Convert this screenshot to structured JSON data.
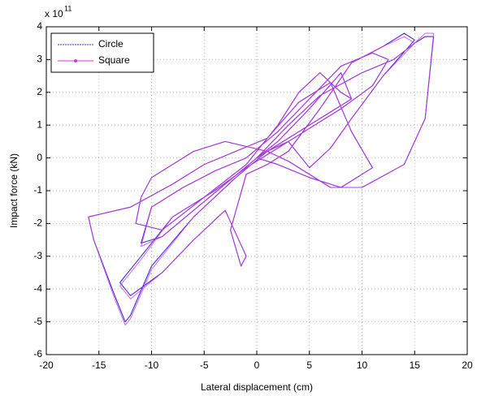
{
  "chart_data": {
    "type": "line",
    "xlabel": "Lateral displacement (cm)",
    "ylabel": "Impact force (kN)",
    "y_multiplier": {
      "base": "x 10",
      "exponent": "11"
    },
    "xlim": [
      -20,
      20
    ],
    "xticks": [
      -20,
      -15,
      -10,
      -5,
      0,
      5,
      10,
      15,
      20
    ],
    "ylim": [
      -6,
      4
    ],
    "yticks": [
      -6,
      -5,
      -4,
      -3,
      -2,
      -1,
      0,
      1,
      2,
      3,
      4
    ],
    "grid": true,
    "legend": "upper left",
    "series": [
      {
        "name": "Circle",
        "color": "#3a2ee0",
        "x": [
          0,
          2,
          5,
          8,
          9,
          6,
          3,
          0,
          -3,
          -6,
          -9,
          -11,
          -10,
          -7,
          -4,
          -1,
          2,
          5,
          8,
          11,
          12.5,
          11,
          8,
          5,
          2,
          -1,
          -4,
          -8,
          -11,
          -13,
          -12,
          -9,
          -6,
          -3,
          -1,
          -1.5,
          -2.5,
          -1,
          1,
          3,
          6,
          9,
          12,
          14,
          15,
          12,
          9,
          7,
          5,
          3,
          1,
          -2,
          -6,
          -10,
          -12,
          -12.5,
          -13.5,
          -15.5,
          -16,
          -12,
          -8,
          -5,
          -2,
          1,
          4,
          7,
          9,
          11,
          8,
          5,
          2,
          0,
          3,
          6,
          10,
          13,
          15,
          16,
          16.8,
          16,
          14,
          10,
          7,
          3,
          1,
          -3,
          -6,
          -8,
          -10,
          -11,
          -11.5,
          -9,
          -5,
          -1,
          2,
          4,
          6,
          8,
          9
        ],
        "values": [
          0,
          0.5,
          1.5,
          2.6,
          1.8,
          1.2,
          0.6,
          0,
          -0.8,
          -1.6,
          -2.4,
          -2.6,
          -1.5,
          -0.9,
          -0.4,
          0,
          0.8,
          1.8,
          2.8,
          3.2,
          3.0,
          2.2,
          1.5,
          0.9,
          0.3,
          -0.3,
          -1.0,
          -1.8,
          -3.0,
          -3.8,
          -4.2,
          -3.5,
          -2.5,
          -1.6,
          -3.0,
          -3.3,
          -2.2,
          -0.5,
          -0.2,
          0.2,
          1.5,
          2.9,
          3.4,
          3.8,
          3.6,
          2.5,
          1.2,
          0.3,
          -0.3,
          0.5,
          0.2,
          -0.6,
          -1.8,
          -3.3,
          -4.8,
          -5.0,
          -4.2,
          -2.5,
          -1.8,
          -1.5,
          -0.8,
          -0.2,
          0.2,
          0.6,
          1.7,
          2.3,
          0.8,
          -0.3,
          -0.9,
          -0.6,
          -0.2,
          0,
          1.0,
          1.9,
          2.6,
          3.0,
          3.5,
          3.7,
          3.7,
          1.2,
          -0.2,
          -0.9,
          -0.9,
          -0.1,
          0.2,
          0.5,
          0.2,
          -0.2,
          -0.6,
          -1.2,
          -2.0,
          -2.2,
          -1.2,
          -0.2,
          1.0,
          2.0,
          2.6,
          2.0,
          1.8
        ]
      },
      {
        "name": "Square",
        "color": "#d23cd8",
        "x": [
          0,
          2,
          5,
          8,
          9,
          6,
          3,
          0,
          -3,
          -6,
          -9,
          -11,
          -10,
          -7,
          -4,
          -1,
          2,
          5,
          8,
          11,
          12.5,
          11,
          8,
          5,
          2,
          -1,
          -4,
          -8,
          -11,
          -13,
          -12,
          -9,
          -6,
          -3,
          -1,
          -1.5,
          -2.5,
          -1,
          1,
          3,
          6,
          9,
          12,
          14,
          15,
          12,
          9,
          7,
          5,
          3,
          1,
          -2,
          -6,
          -10,
          -12,
          -12.5,
          -13.5,
          -15.5,
          -16,
          -12,
          -8,
          -5,
          -2,
          1,
          4,
          7,
          9,
          11,
          8,
          5,
          2,
          0,
          3,
          6,
          10,
          13,
          15,
          16,
          16.8,
          16,
          14,
          10,
          7,
          3,
          1,
          -3,
          -6,
          -8,
          -10,
          -11,
          -11.5,
          -9,
          -5,
          -1,
          2,
          4,
          6,
          8,
          9
        ],
        "values": [
          0,
          0.5,
          1.5,
          2.6,
          1.8,
          1.2,
          0.6,
          0,
          -0.8,
          -1.6,
          -2.4,
          -2.7,
          -1.5,
          -0.9,
          -0.4,
          0,
          0.8,
          1.8,
          2.8,
          3.2,
          3.0,
          2.2,
          1.5,
          0.9,
          0.3,
          -0.3,
          -1.0,
          -1.8,
          -3.1,
          -3.9,
          -4.3,
          -3.5,
          -2.5,
          -1.6,
          -3.0,
          -3.3,
          -2.2,
          -0.5,
          -0.2,
          0.2,
          1.5,
          2.9,
          3.4,
          3.7,
          3.5,
          2.5,
          1.2,
          0.3,
          -0.3,
          0.5,
          0.2,
          -0.6,
          -1.8,
          -3.4,
          -4.9,
          -5.1,
          -4.3,
          -2.5,
          -1.8,
          -1.5,
          -0.8,
          -0.2,
          0.2,
          0.6,
          1.7,
          2.3,
          0.8,
          -0.3,
          -0.9,
          -0.6,
          -0.2,
          0,
          1.0,
          1.9,
          2.6,
          3.0,
          3.5,
          3.8,
          3.8,
          1.2,
          -0.2,
          -0.9,
          -0.9,
          -0.1,
          0.2,
          0.5,
          0.2,
          -0.2,
          -0.6,
          -1.2,
          -2.0,
          -2.2,
          -1.2,
          -0.2,
          1.0,
          2.0,
          2.6,
          2.0,
          1.8
        ]
      }
    ]
  }
}
